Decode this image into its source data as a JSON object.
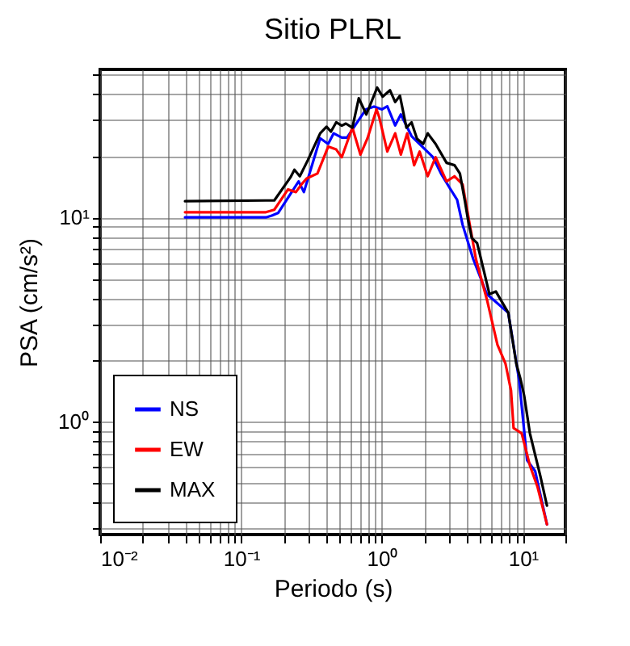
{
  "chart_data": {
    "type": "line",
    "title": "Sitio PLRL",
    "xlabel": "Periodo (s)",
    "ylabel": "PSA (cm/s²)",
    "log": "xy",
    "grid": true,
    "legend": "bottom left",
    "line_style": "solid",
    "marker": "none",
    "xlim": [
      0.01,
      20
    ],
    "ylim": [
      0.28,
      53
    ],
    "xticks": [
      {
        "value": 0.01,
        "label": "10⁻²"
      },
      {
        "value": 0.02,
        "label": null
      },
      {
        "value": 0.03,
        "label": null
      },
      {
        "value": 0.04,
        "label": null
      },
      {
        "value": 0.05,
        "label": null
      },
      {
        "value": 0.06,
        "label": null
      },
      {
        "value": 0.07,
        "label": null
      },
      {
        "value": 0.08,
        "label": null
      },
      {
        "value": 0.09,
        "label": null
      },
      {
        "value": 0.1,
        "label": "10⁻¹"
      },
      {
        "value": 0.2,
        "label": null
      },
      {
        "value": 0.3,
        "label": null
      },
      {
        "value": 0.4,
        "label": null
      },
      {
        "value": 0.5,
        "label": null
      },
      {
        "value": 0.6,
        "label": null
      },
      {
        "value": 0.7,
        "label": null
      },
      {
        "value": 0.8,
        "label": null
      },
      {
        "value": 0.9,
        "label": null
      },
      {
        "value": 1,
        "label": "10⁰"
      },
      {
        "value": 2,
        "label": null
      },
      {
        "value": 3,
        "label": null
      },
      {
        "value": 4,
        "label": null
      },
      {
        "value": 5,
        "label": null
      },
      {
        "value": 6,
        "label": null
      },
      {
        "value": 7,
        "label": null
      },
      {
        "value": 8,
        "label": null
      },
      {
        "value": 9,
        "label": null
      },
      {
        "value": 10,
        "label": "10¹"
      },
      {
        "value": 20,
        "label": null
      }
    ],
    "yticks": [
      {
        "value": 0.3,
        "label": null
      },
      {
        "value": 0.4,
        "label": null
      },
      {
        "value": 0.5,
        "label": null
      },
      {
        "value": 0.6,
        "label": null
      },
      {
        "value": 0.7,
        "label": null
      },
      {
        "value": 0.8,
        "label": null
      },
      {
        "value": 0.9,
        "label": null
      },
      {
        "value": 1,
        "label": "10⁰"
      },
      {
        "value": 2,
        "label": null
      },
      {
        "value": 3,
        "label": null
      },
      {
        "value": 4,
        "label": null
      },
      {
        "value": 5,
        "label": null
      },
      {
        "value": 6,
        "label": null
      },
      {
        "value": 7,
        "label": null
      },
      {
        "value": 8,
        "label": null
      },
      {
        "value": 9,
        "label": null
      },
      {
        "value": 10,
        "label": "10¹"
      },
      {
        "value": 20,
        "label": null
      },
      {
        "value": 30,
        "label": null
      },
      {
        "value": 40,
        "label": null
      },
      {
        "value": 50,
        "label": null
      }
    ],
    "series": [
      {
        "name": "NS",
        "color": "#0000ff",
        "x": [
          0.04,
          0.15,
          0.165,
          0.183,
          0.256,
          0.279,
          0.364,
          0.415,
          0.454,
          0.518,
          0.565,
          0.644,
          0.769,
          0.877,
          1.0,
          1.09,
          1.24,
          1.36,
          1.62,
          1.93,
          2.3,
          2.62,
          2.99,
          3.41,
          3.73,
          4.44,
          5.55,
          7.87,
          9.39,
          10.7,
          12.2,
          14.8
        ],
        "values": [
          10.0,
          10.0,
          10.2,
          10.5,
          15,
          13.3,
          24.4,
          22.9,
          25.8,
          24.6,
          24.6,
          28.2,
          33.8,
          34.9,
          33.8,
          35,
          28.2,
          31.9,
          25,
          22.2,
          19.7,
          16.4,
          14.1,
          12.2,
          9.2,
          6.24,
          4.21,
          3.41,
          1.6,
          0.647,
          0.573,
          0.314
        ]
      },
      {
        "name": "EW",
        "color": "#ff0000",
        "x": [
          0.04,
          0.15,
          0.172,
          0.215,
          0.245,
          0.268,
          0.292,
          0.348,
          0.415,
          0.473,
          0.518,
          0.616,
          0.703,
          0.789,
          0.914,
          0.956,
          1.09,
          1.24,
          1.36,
          1.51,
          1.69,
          1.85,
          2.11,
          2.4,
          2.87,
          3.27,
          3.73,
          4.64,
          5.55,
          6.59,
          7.52,
          8.23,
          8.58,
          9.79,
          11.2,
          12.7,
          14.8
        ],
        "values": [
          10.6,
          10.6,
          10.9,
          13.7,
          13.3,
          14.5,
          15.5,
          16.4,
          22.2,
          21.5,
          19.7,
          27.5,
          20.3,
          24.4,
          33.8,
          30.9,
          21,
          25.8,
          20.3,
          25.8,
          18.0,
          21.0,
          15.9,
          19.7,
          15.0,
          15.9,
          14.5,
          6.24,
          3.96,
          2.38,
          1.92,
          1.42,
          0.93,
          0.877,
          0.61,
          0.478,
          0.314
        ]
      },
      {
        "name": "MAX",
        "color": "#000000",
        "x": [
          0.04,
          0.15,
          0.172,
          0.224,
          0.239,
          0.261,
          0.298,
          0.364,
          0.404,
          0.434,
          0.473,
          0.518,
          0.554,
          0.616,
          0.684,
          0.774,
          0.924,
          1.01,
          1.14,
          1.24,
          1.34,
          1.49,
          1.62,
          1.77,
          1.96,
          2.11,
          2.4,
          2.87,
          3.27,
          3.57,
          3.89,
          4.07,
          4.33,
          4.73,
          4.99,
          5.78,
          6.42,
          7.87,
          8.97,
          9.64,
          10.2,
          11.2,
          13.3,
          14.8
        ],
        "values": [
          12.0,
          12.1,
          12.1,
          15.7,
          17.1,
          15.9,
          19.1,
          25.8,
          27.8,
          26.3,
          29.2,
          28.1,
          28.8,
          27.5,
          38.3,
          31.9,
          43.2,
          39.0,
          41.9,
          36.7,
          39.4,
          27.5,
          29.2,
          24.3,
          22.9,
          25.8,
          22.9,
          18.5,
          18.0,
          16.4,
          11.8,
          9.8,
          7.94,
          7.48,
          6.44,
          4.21,
          4.34,
          3.41,
          1.92,
          1.6,
          1.34,
          0.877,
          0.54,
          0.388
        ]
      }
    ]
  }
}
